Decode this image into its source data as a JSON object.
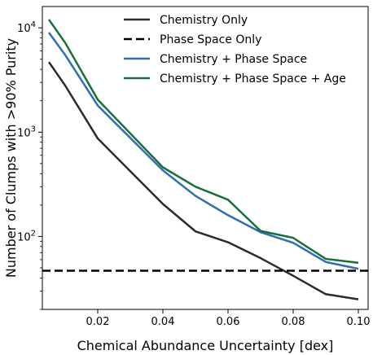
{
  "chart_data": {
    "type": "line",
    "title": "",
    "xlabel": "Chemical Abundance Uncertainty [dex]",
    "ylabel": "Number of Clumps with >90% Purity",
    "xlim": [
      0.003,
      0.103
    ],
    "ylim": [
      20,
      16000
    ],
    "yscale": "log",
    "grid": false,
    "legend_position": "top-right",
    "x_ticks": [
      {
        "value": 0.02,
        "label": "0.02"
      },
      {
        "value": 0.04,
        "label": "0.04"
      },
      {
        "value": 0.06,
        "label": "0.06"
      },
      {
        "value": 0.08,
        "label": "0.08"
      },
      {
        "value": 0.1,
        "label": "0.10"
      }
    ],
    "y_ticks": [
      {
        "value": 100,
        "base": "10",
        "exp": "2"
      },
      {
        "value": 1000,
        "base": "10",
        "exp": "3"
      },
      {
        "value": 10000,
        "base": "10",
        "exp": "4"
      }
    ],
    "x": [
      0.005,
      0.01,
      0.02,
      0.04,
      0.05,
      0.06,
      0.07,
      0.08,
      0.09,
      0.1
    ],
    "series": [
      {
        "name": "Chemistry Only",
        "color": "#2b2b2b",
        "dash": "solid",
        "values": [
          4700,
          2800,
          870,
          205,
          112,
          88,
          62,
          42,
          28,
          25
        ]
      },
      {
        "name": "Phase Space Only",
        "color": "#000000",
        "dash": "dashed",
        "constant": 47
      },
      {
        "name": "Chemistry + Phase Space",
        "color": "#2f6db5",
        "dash": "solid",
        "values": [
          9000,
          5500,
          1800,
          430,
          245,
          160,
          110,
          87,
          57,
          49
        ]
      },
      {
        "name": "Chemistry + Phase Space + Age",
        "color": "#1a6e3a",
        "dash": "solid",
        "values": [
          12000,
          7200,
          2050,
          460,
          300,
          225,
          113,
          97,
          61,
          56
        ]
      }
    ]
  }
}
